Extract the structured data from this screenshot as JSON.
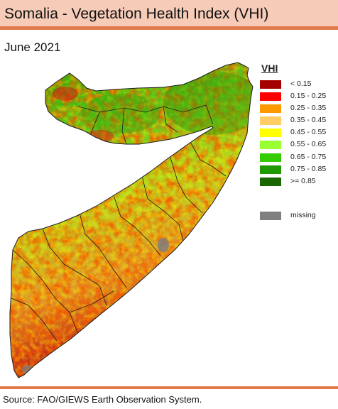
{
  "header": {
    "title": "Somalia - Vegetation Health Index (VHI)"
  },
  "period": "June 2021",
  "legend": {
    "title": "VHI",
    "items": [
      {
        "label": "< 0.15",
        "color": "#a50000"
      },
      {
        "label": "0.15 - 0.25",
        "color": "#ff0000"
      },
      {
        "label": "0.25 - 0.35",
        "color": "#ff9900"
      },
      {
        "label": "0.35 - 0.45",
        "color": "#ffcc66"
      },
      {
        "label": "0.45 - 0.55",
        "color": "#ffff00"
      },
      {
        "label": "0.55 - 0.65",
        "color": "#99ff33"
      },
      {
        "label": "0.65 - 0.75",
        "color": "#33cc00"
      },
      {
        "label": "0.75 - 0.85",
        "color": "#1f9900"
      },
      {
        "label": ">= 0.85",
        "color": "#1a6600"
      }
    ],
    "missing": {
      "label": "missing",
      "color": "#7f7f7f"
    }
  },
  "source": "Source: FAO/GIEWS Earth Observation System."
}
